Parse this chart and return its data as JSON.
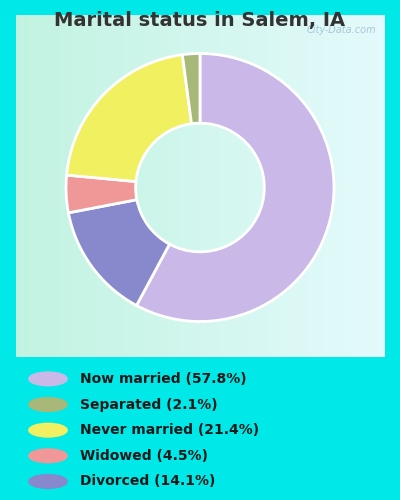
{
  "title": "Marital status in Salem, IA",
  "slices": [
    57.8,
    14.1,
    4.5,
    21.4,
    2.1
  ],
  "labels_legend": [
    "Now married (57.8%)",
    "Separated (2.1%)",
    "Never married (21.4%)",
    "Widowed (4.5%)",
    "Divorced (14.1%)"
  ],
  "colors": [
    "#c9b8e8",
    "#8888cc",
    "#f09898",
    "#f0f060",
    "#a8b878"
  ],
  "legend_colors": [
    "#c9b8e8",
    "#a8b878",
    "#f0f060",
    "#f09898",
    "#8888cc"
  ],
  "bg_outer": "#00e8e8",
  "bg_panel_grad_start": "#c0eed8",
  "bg_panel_grad_end": "#eefaf4",
  "title_color": "#333333",
  "title_fontsize": 14,
  "watermark": "City-Data.com",
  "legend_fontsize": 10,
  "donut_width": 0.52
}
